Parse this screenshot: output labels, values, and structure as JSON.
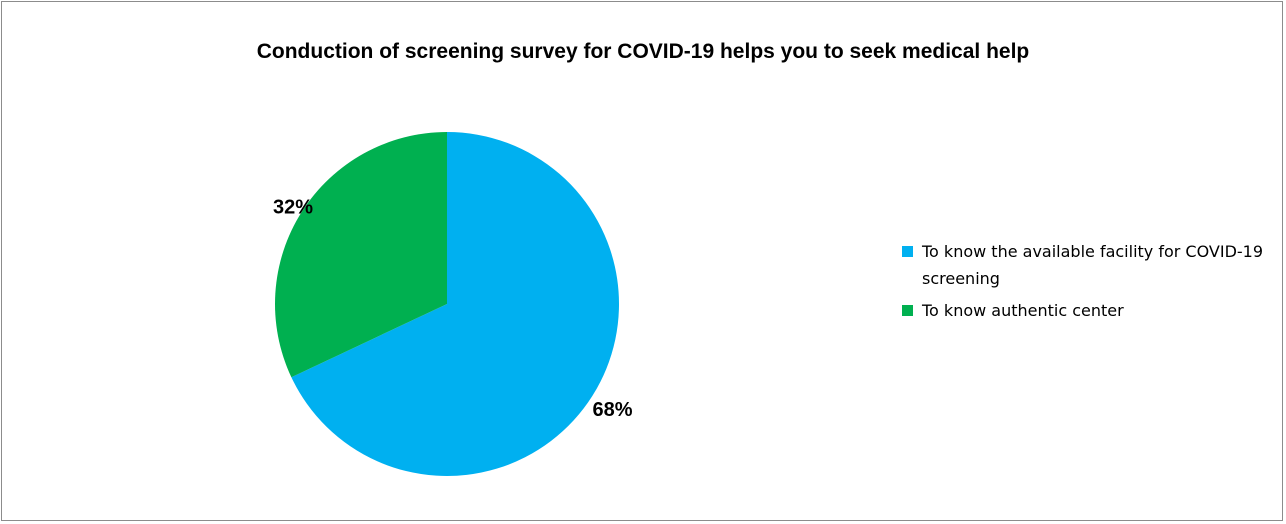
{
  "chart_data": {
    "type": "pie",
    "title": "Conduction of screening survey for COVID-19 helps you to seek medical help",
    "slices": [
      {
        "label": "To know the available facility for COVID-19  screening",
        "value": 68,
        "display": "68%",
        "color": "#00b0f0"
      },
      {
        "label": "To know authentic center",
        "value": 32,
        "display": "32%",
        "color": "#00b050"
      }
    ],
    "legend_position": "right"
  }
}
